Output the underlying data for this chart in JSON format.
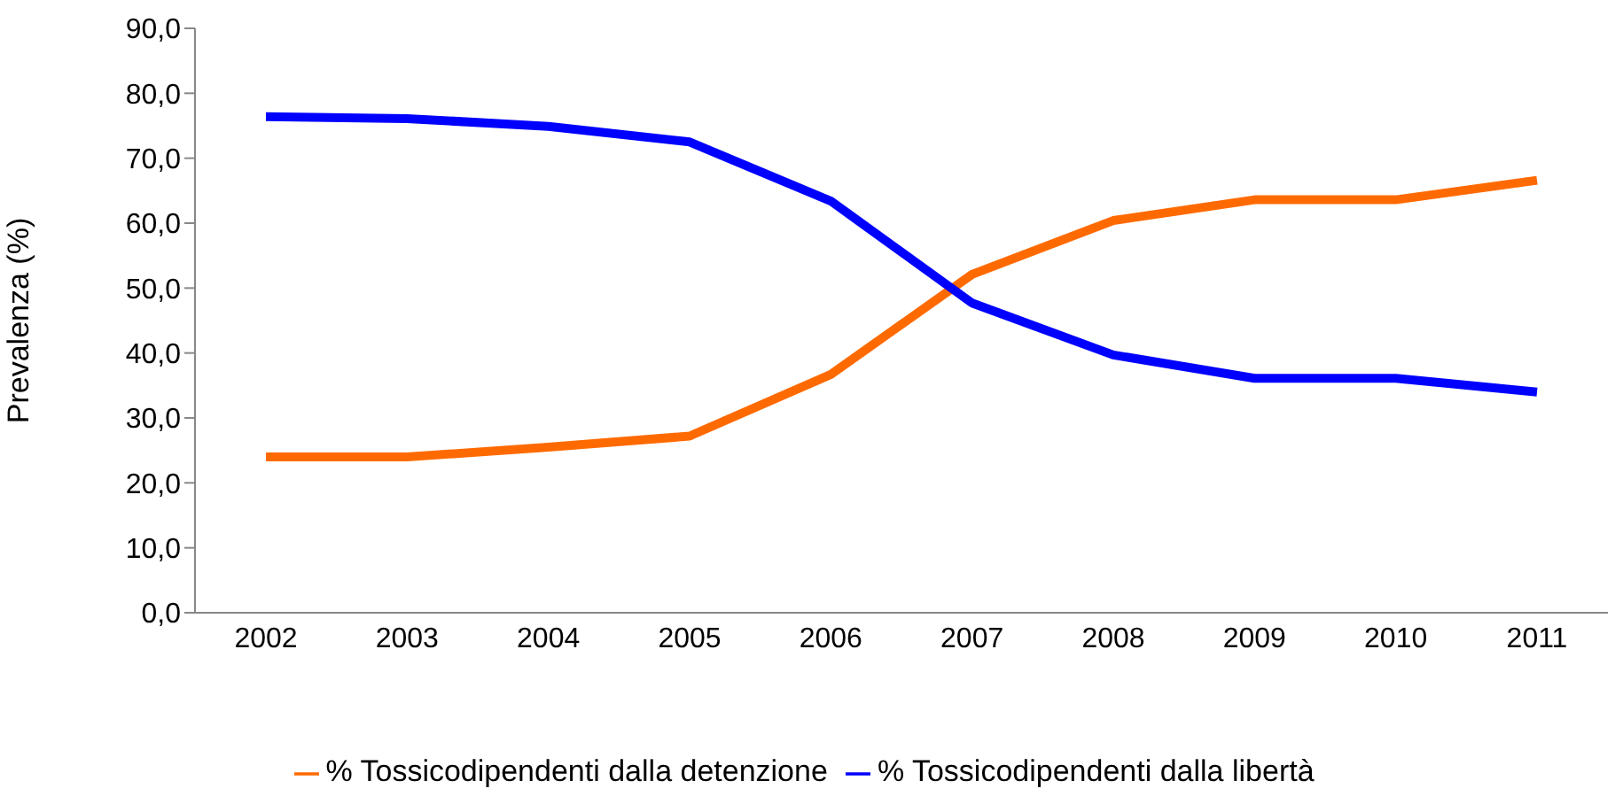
{
  "chart_data": {
    "type": "line",
    "ylabel": "Prevalenza (%)",
    "categories": [
      "2002",
      "2003",
      "2004",
      "2005",
      "2006",
      "2007",
      "2008",
      "2009",
      "2010",
      "2011"
    ],
    "series": [
      {
        "name": "% Tossicodipendenti dalla detenzione",
        "color": "#ff6a00",
        "values": [
          24.0,
          24.0,
          25.5,
          27.2,
          36.7,
          52.1,
          60.4,
          63.6,
          63.6,
          66.6
        ]
      },
      {
        "name": "% Tossicodipendenti dalla libertà",
        "color": "#0000ff",
        "values": [
          76.4,
          76.1,
          74.9,
          72.5,
          63.4,
          47.7,
          39.7,
          36.1,
          36.1,
          34.0
        ]
      }
    ],
    "ylim": [
      0,
      90
    ],
    "yticks": [
      {
        "value": 0,
        "label": "0,0"
      },
      {
        "value": 10,
        "label": "10,0"
      },
      {
        "value": 20,
        "label": "20,0"
      },
      {
        "value": 30,
        "label": "30,0"
      },
      {
        "value": 40,
        "label": "40,0"
      },
      {
        "value": 50,
        "label": "50,0"
      },
      {
        "value": 60,
        "label": "60,0"
      },
      {
        "value": 70,
        "label": "70,0"
      },
      {
        "value": 80,
        "label": "80,0"
      },
      {
        "value": 90,
        "label": "90,0"
      }
    ],
    "grid": false,
    "legend": "bottom",
    "marker": "none",
    "line_style": "solid"
  }
}
